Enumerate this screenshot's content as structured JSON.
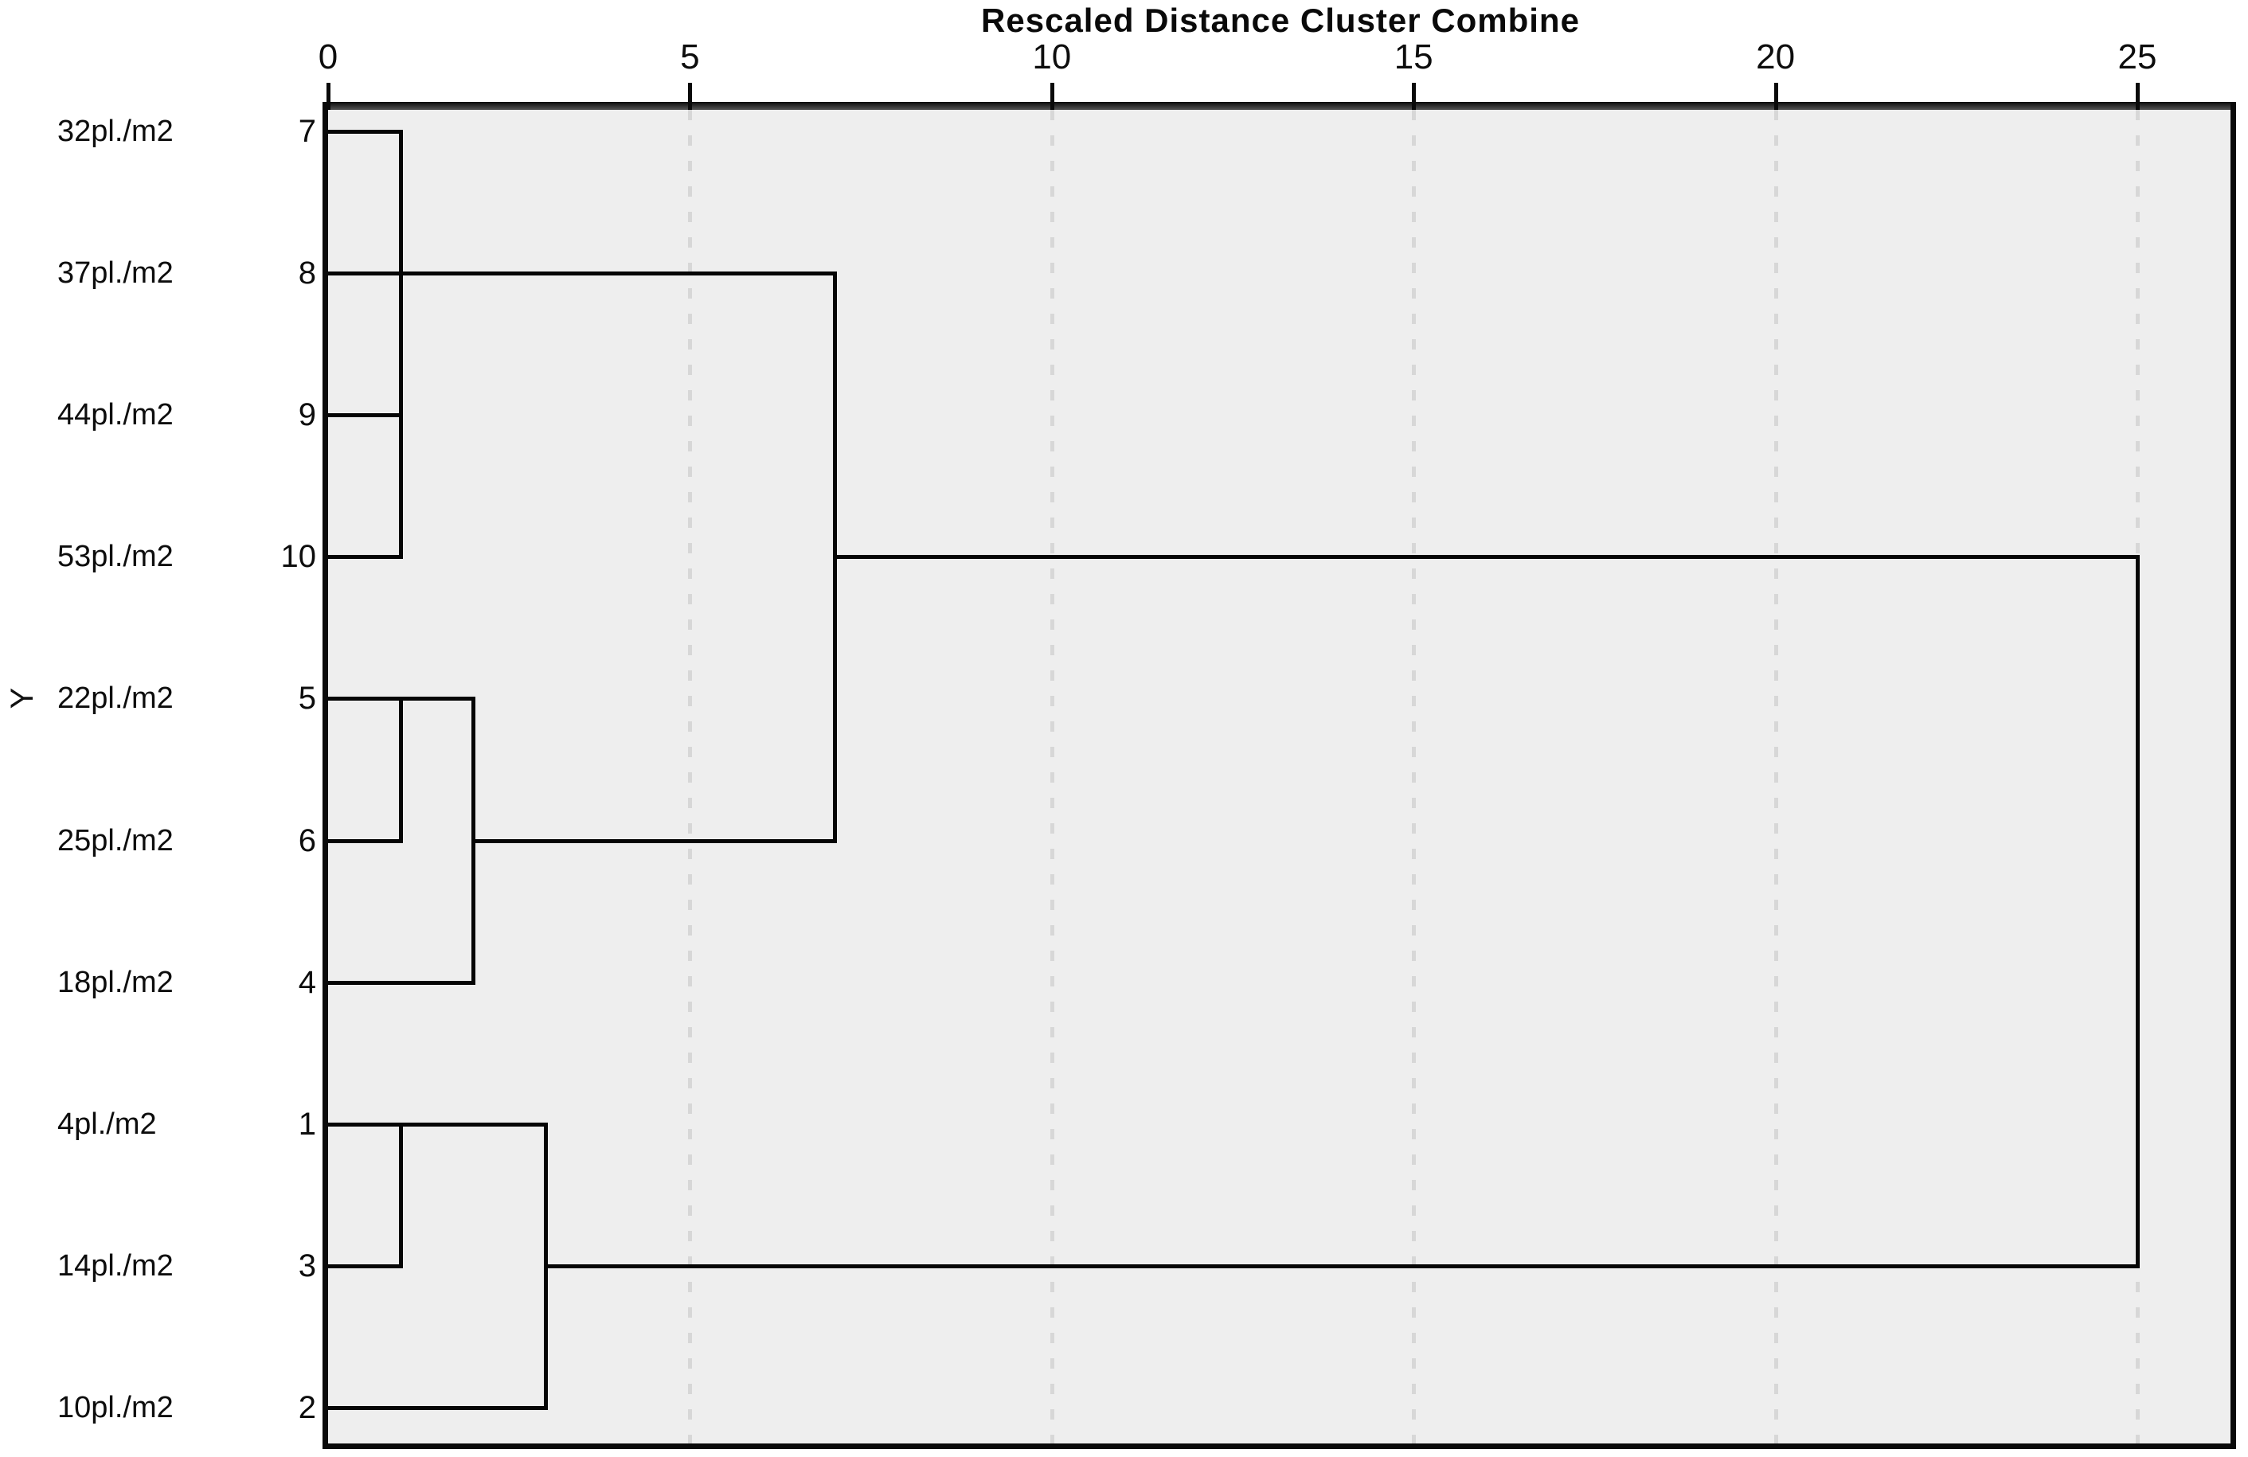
{
  "title": "Rescaled Distance Cluster Combine",
  "y_axis_label": "Y",
  "axis": {
    "min": 0,
    "max": 25,
    "ticks": [
      0,
      5,
      10,
      15,
      20,
      25
    ]
  },
  "leaves": [
    {
      "label": "32pl./m2",
      "case": "7"
    },
    {
      "label": "37pl./m2",
      "case": "8"
    },
    {
      "label": "44pl./m2",
      "case": "9"
    },
    {
      "label": "53pl./m2",
      "case": "10"
    },
    {
      "label": "22pl./m2",
      "case": "5"
    },
    {
      "label": "25pl./m2",
      "case": "6"
    },
    {
      "label": "18pl./m2",
      "case": "4"
    },
    {
      "label": "4pl./m2",
      "case": "1"
    },
    {
      "label": "14pl./m2",
      "case": "3"
    },
    {
      "label": "10pl./m2",
      "case": "2"
    }
  ],
  "colors": {
    "plot_background": "#eeeeee",
    "dendrogram_line": "#050505",
    "gridline": "#d7d7d7",
    "axis_bar": "#3a3a3a",
    "border": "#0a0a0a",
    "text": "#0d0d0d",
    "page_background": "#ffffff"
  },
  "chart_data": {
    "type": "dendrogram",
    "orientation": "horizontal",
    "title": "Rescaled Distance Cluster Combine",
    "xlabel": "Rescaled Distance Cluster Combine",
    "ylabel": "Y",
    "xlim": [
      0,
      25
    ],
    "xticks": [
      0,
      5,
      10,
      15,
      20,
      25
    ],
    "grid": "dashed-vertical",
    "leaf_order_top_to_bottom": [
      "32pl./m2 (7)",
      "37pl./m2 (8)",
      "44pl./m2 (9)",
      "53pl./m2 (10)",
      "22pl./m2 (5)",
      "25pl./m2 (6)",
      "18pl./m2 (4)",
      "4pl./m2 (1)",
      "14pl./m2 (3)",
      "10pl./m2 (2)"
    ],
    "merges": [
      {
        "clusters": [
          "7",
          "8",
          "9",
          "10"
        ],
        "distance": 1
      },
      {
        "clusters": [
          "5",
          "6"
        ],
        "distance": 1
      },
      {
        "clusters": [
          "5+6",
          "4"
        ],
        "distance": 2
      },
      {
        "clusters": [
          "1",
          "3"
        ],
        "distance": 1
      },
      {
        "clusters": [
          "1+3",
          "2"
        ],
        "distance": 3
      },
      {
        "clusters": [
          "7+8+9+10",
          "5+6+4"
        ],
        "distance": 7
      },
      {
        "clusters": [
          "7+8+9+10+5+6+4",
          "1+3+2"
        ],
        "distance": 25
      }
    ],
    "segments": {
      "horizontal": [
        {
          "row": 0,
          "from": 0,
          "to": 1
        },
        {
          "row": 1,
          "from": 0,
          "to": 7
        },
        {
          "row": 2,
          "from": 0,
          "to": 1
        },
        {
          "row": 3,
          "from": 0,
          "to": 1
        },
        {
          "row": 3,
          "from": 7,
          "to": 25
        },
        {
          "row": 4,
          "from": 0,
          "to": 2
        },
        {
          "row": 5,
          "from": 0,
          "to": 1
        },
        {
          "row": 5,
          "from": 2,
          "to": 7
        },
        {
          "row": 6,
          "from": 0,
          "to": 2
        },
        {
          "row": 7,
          "from": 0,
          "to": 3
        },
        {
          "row": 8,
          "from": 0,
          "to": 1
        },
        {
          "row": 8,
          "from": 3,
          "to": 25
        },
        {
          "row": 9,
          "from": 0,
          "to": 3
        }
      ],
      "vertical": [
        {
          "x": 1,
          "from_row": 0,
          "to_row": 3
        },
        {
          "x": 1,
          "from_row": 4,
          "to_row": 5
        },
        {
          "x": 2,
          "from_row": 4,
          "to_row": 6
        },
        {
          "x": 1,
          "from_row": 7,
          "to_row": 8
        },
        {
          "x": 3,
          "from_row": 7,
          "to_row": 9
        },
        {
          "x": 7,
          "from_row": 1,
          "to_row": 5
        },
        {
          "x": 25,
          "from_row": 3,
          "to_row": 8
        }
      ]
    }
  }
}
